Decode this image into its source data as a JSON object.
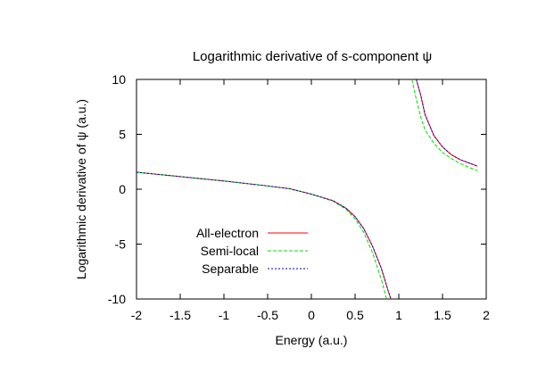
{
  "chart_data": {
    "type": "line",
    "title": "Logarithmic derivative of s-component ψ",
    "xlabel": "Energy (a.u.)",
    "ylabel": "Logarithmic derivative of ψ (a.u.)",
    "xlim": [
      -2,
      2
    ],
    "ylim": [
      -10,
      10
    ],
    "xticks": [
      "-2",
      "-1.5",
      "-1",
      "-0.5",
      "0",
      "0.5",
      "1",
      "1.5",
      "2"
    ],
    "yticks": [
      "10",
      "5",
      "0",
      "-5",
      "-10"
    ],
    "grid": false,
    "legend_position": "bottom-left",
    "series": [
      {
        "name": "All-electron",
        "color": "#ff0000",
        "dash": "",
        "segments": [
          [
            [
              -2.0,
              1.55
            ],
            [
              -1.5,
              1.15
            ],
            [
              -1.0,
              0.75
            ],
            [
              -0.5,
              0.3
            ],
            [
              -0.25,
              0.05
            ],
            [
              0.0,
              -0.45
            ],
            [
              0.25,
              -1.05
            ],
            [
              0.4,
              -1.75
            ],
            [
              0.5,
              -2.5
            ],
            [
              0.6,
              -3.6
            ],
            [
              0.7,
              -5.2
            ],
            [
              0.8,
              -7.2
            ],
            [
              0.88,
              -9.3
            ],
            [
              0.91,
              -10.0
            ]
          ],
          [
            [
              1.2,
              10.0
            ],
            [
              1.25,
              8.6
            ],
            [
              1.3,
              6.8
            ],
            [
              1.4,
              4.9
            ],
            [
              1.5,
              3.85
            ],
            [
              1.6,
              3.15
            ],
            [
              1.7,
              2.7
            ],
            [
              1.8,
              2.4
            ],
            [
              1.9,
              2.1
            ]
          ]
        ]
      },
      {
        "name": "Semi-local",
        "color": "#00dd00",
        "dash": "4,2",
        "segments": [
          [
            [
              -2.0,
              1.55
            ],
            [
              -1.5,
              1.15
            ],
            [
              -1.0,
              0.75
            ],
            [
              -0.5,
              0.3
            ],
            [
              -0.25,
              0.05
            ],
            [
              0.0,
              -0.45
            ],
            [
              0.25,
              -1.1
            ],
            [
              0.4,
              -1.85
            ],
            [
              0.5,
              -2.7
            ],
            [
              0.6,
              -3.95
            ],
            [
              0.7,
              -5.8
            ],
            [
              0.8,
              -8.2
            ],
            [
              0.86,
              -10.0
            ]
          ],
          [
            [
              1.15,
              10.0
            ],
            [
              1.2,
              8.2
            ],
            [
              1.25,
              6.6
            ],
            [
              1.3,
              5.4
            ],
            [
              1.4,
              4.2
            ],
            [
              1.5,
              3.35
            ],
            [
              1.6,
              2.8
            ],
            [
              1.7,
              2.35
            ],
            [
              1.8,
              2.0
            ],
            [
              1.9,
              1.7
            ]
          ]
        ]
      },
      {
        "name": "Separable",
        "color": "#0000cc",
        "dash": "2,2",
        "segments": [
          [
            [
              -2.0,
              1.55
            ],
            [
              -1.5,
              1.15
            ],
            [
              -1.0,
              0.75
            ],
            [
              -0.5,
              0.3
            ],
            [
              -0.25,
              0.05
            ],
            [
              0.0,
              -0.45
            ],
            [
              0.25,
              -1.05
            ],
            [
              0.4,
              -1.75
            ],
            [
              0.5,
              -2.5
            ],
            [
              0.6,
              -3.6
            ],
            [
              0.7,
              -5.2
            ],
            [
              0.8,
              -7.2
            ],
            [
              0.88,
              -9.3
            ],
            [
              0.91,
              -10.0
            ]
          ],
          [
            [
              1.2,
              10.0
            ],
            [
              1.25,
              8.6
            ],
            [
              1.3,
              6.8
            ],
            [
              1.4,
              4.9
            ],
            [
              1.5,
              3.85
            ],
            [
              1.6,
              3.15
            ],
            [
              1.7,
              2.7
            ],
            [
              1.8,
              2.4
            ],
            [
              1.9,
              2.1
            ]
          ]
        ]
      }
    ]
  }
}
